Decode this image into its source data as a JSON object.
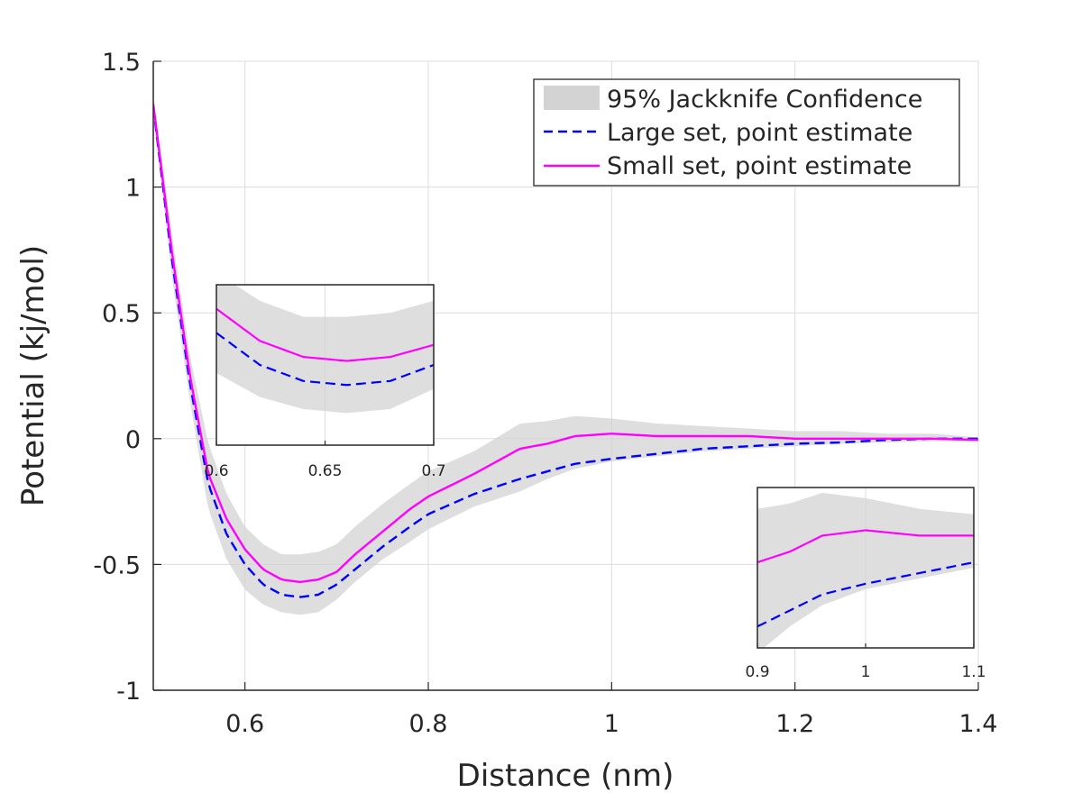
{
  "chart_data": {
    "type": "line",
    "xlabel": "Distance (nm)",
    "ylabel": "Potential (kj/mol)",
    "xlim": [
      0.5,
      1.4
    ],
    "ylim": [
      -1,
      1.5
    ],
    "xticks": [
      "0.6",
      "0.8",
      "1",
      "1.2",
      "1.4"
    ],
    "yticks": [
      "-1",
      "-0.5",
      "0",
      "0.5",
      "1",
      "1.5"
    ],
    "grid": true,
    "legend_position": "top-right",
    "legend": {
      "band": "95% Jackknife Confidence",
      "large": "Large set, point estimate",
      "small": "Small set, point estimate"
    },
    "x": [
      0.5,
      0.52,
      0.54,
      0.56,
      0.58,
      0.6,
      0.62,
      0.64,
      0.66,
      0.68,
      0.7,
      0.72,
      0.75,
      0.78,
      0.8,
      0.85,
      0.9,
      0.93,
      0.96,
      1.0,
      1.05,
      1.1,
      1.15,
      1.2,
      1.25,
      1.3,
      1.35,
      1.4
    ],
    "series": [
      {
        "name": "Large set, point estimate",
        "style": "dashed",
        "color": "#0000ff",
        "values": [
          1.32,
          0.72,
          0.22,
          -0.18,
          -0.38,
          -0.5,
          -0.58,
          -0.62,
          -0.63,
          -0.62,
          -0.58,
          -0.52,
          -0.43,
          -0.35,
          -0.3,
          -0.22,
          -0.16,
          -0.13,
          -0.1,
          -0.08,
          -0.06,
          -0.04,
          -0.03,
          -0.02,
          -0.015,
          -0.005,
          0.0,
          0.0
        ]
      },
      {
        "name": "Small set, point estimate",
        "style": "solid",
        "color": "#ff00ff",
        "values": [
          1.33,
          0.75,
          0.25,
          -0.14,
          -0.32,
          -0.44,
          -0.52,
          -0.56,
          -0.57,
          -0.56,
          -0.53,
          -0.46,
          -0.37,
          -0.28,
          -0.23,
          -0.14,
          -0.04,
          -0.02,
          0.01,
          0.02,
          0.01,
          0.01,
          0.01,
          0.0,
          0.0,
          0.0,
          0.0,
          -0.005
        ]
      }
    ],
    "band": {
      "name": "95% Jackknife Confidence",
      "color": "#d3d3d3",
      "lower": [
        1.3,
        0.65,
        0.15,
        -0.28,
        -0.48,
        -0.6,
        -0.66,
        -0.69,
        -0.7,
        -0.69,
        -0.64,
        -0.57,
        -0.48,
        -0.41,
        -0.36,
        -0.27,
        -0.21,
        -0.16,
        -0.12,
        -0.09,
        -0.07,
        -0.05,
        -0.04,
        -0.03,
        -0.02,
        -0.015,
        -0.01,
        -0.005
      ],
      "upper": [
        1.36,
        0.82,
        0.33,
        -0.02,
        -0.22,
        -0.35,
        -0.42,
        -0.46,
        -0.46,
        -0.45,
        -0.42,
        -0.35,
        -0.26,
        -0.18,
        -0.13,
        -0.05,
        0.06,
        0.07,
        0.09,
        0.08,
        0.06,
        0.05,
        0.04,
        0.03,
        0.03,
        0.02,
        0.02,
        0.005
      ]
    },
    "insets": [
      {
        "name": "inset-left",
        "xlim": [
          0.6,
          0.7
        ],
        "xticks": [
          "0.6",
          "0.65",
          "0.7"
        ]
      },
      {
        "name": "inset-right",
        "xlim": [
          0.9,
          1.1
        ],
        "xticks": [
          "0.9",
          "1",
          "1.1"
        ]
      }
    ]
  }
}
